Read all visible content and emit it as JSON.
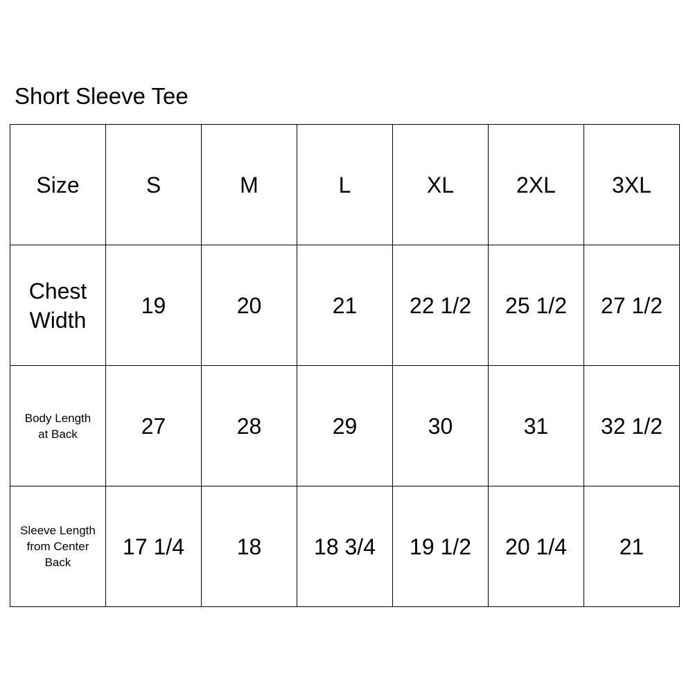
{
  "title": "Short Sleeve Tee",
  "header": {
    "label": "Size",
    "sizes": [
      "S",
      "M",
      "L",
      "XL",
      "2XL",
      "3XL"
    ]
  },
  "rows": [
    {
      "label_lines": [
        "Chest",
        "Width"
      ],
      "small": false,
      "values": [
        "19",
        "20",
        "21",
        "22 1/2",
        "25 1/2",
        "27 1/2"
      ]
    },
    {
      "label_lines": [
        "Body Length",
        "at Back"
      ],
      "small": true,
      "values": [
        "27",
        "28",
        "29",
        "30",
        "31",
        "32 1/2"
      ]
    },
    {
      "label_lines": [
        "Sleeve Length",
        "from Center",
        "Back"
      ],
      "small": true,
      "values": [
        "17 1/4",
        "18",
        "18 3/4",
        "19 1/2",
        "20 1/4",
        "21"
      ]
    }
  ]
}
